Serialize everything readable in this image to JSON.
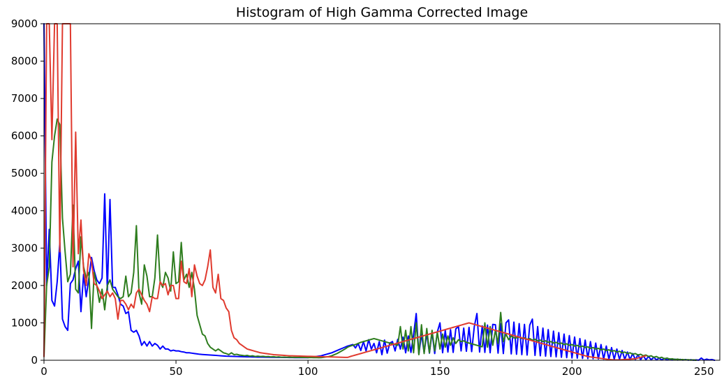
{
  "chart_data": {
    "type": "line",
    "title": "Histogram of High Gamma Corrected Image",
    "xlabel": "",
    "ylabel": "",
    "xlim": [
      0,
      256
    ],
    "ylim": [
      0,
      9000
    ],
    "xticks": [
      0,
      50,
      100,
      150,
      200,
      250
    ],
    "yticks": [
      0,
      1000,
      2000,
      3000,
      4000,
      5000,
      6000,
      7000,
      8000,
      9000
    ],
    "grid": false,
    "legend": false,
    "series": [
      {
        "color": "#0000ff",
        "values": [
          9000,
          2000,
          3500,
          1600,
          1450,
          2100,
          3150,
          1100,
          900,
          800,
          2050,
          2150,
          2450,
          2650,
          1300,
          2300,
          1700,
          2200,
          2750,
          2400,
          2150,
          2050,
          2200,
          4450,
          1850,
          4300,
          1950,
          1950,
          1750,
          1500,
          1450,
          1250,
          1300,
          800,
          750,
          800,
          650,
          400,
          500,
          380,
          500,
          380,
          450,
          400,
          300,
          380,
          300,
          300,
          250,
          270,
          250,
          250,
          230,
          220,
          200,
          200,
          190,
          180,
          170,
          160,
          155,
          150,
          145,
          140,
          135,
          130,
          125,
          120,
          115,
          110,
          108,
          105,
          102,
          100,
          98,
          96,
          94,
          92,
          90,
          88,
          86,
          85,
          84,
          83,
          82,
          81,
          80,
          79,
          78,
          77,
          76,
          75,
          74,
          73,
          72,
          71,
          70,
          70,
          70,
          70,
          70,
          80,
          90,
          100,
          110,
          120,
          140,
          160,
          180,
          200,
          230,
          260,
          290,
          320,
          350,
          380,
          400,
          420,
          330,
          450,
          260,
          500,
          250,
          550,
          300,
          450,
          200,
          500,
          150,
          540,
          190,
          460,
          500,
          250,
          560,
          300,
          620,
          200,
          650,
          210,
          680,
          1250,
          160,
          700,
          200,
          720,
          190,
          750,
          180,
          760,
          1000,
          200,
          800,
          220,
          820,
          210,
          840,
          900,
          250,
          860,
          240,
          880,
          230,
          900,
          1250,
          220,
          920,
          210,
          940,
          200,
          960,
          950,
          190,
          980,
          180,
          1000,
          1080,
          170,
          1020,
          160,
          980,
          150,
          960,
          140,
          940,
          1100,
          130,
          900,
          120,
          860,
          110,
          820,
          100,
          780,
          90,
          740,
          80,
          700,
          70,
          660,
          60,
          620,
          55,
          580,
          50,
          540,
          45,
          500,
          40,
          460,
          35,
          420,
          30,
          380,
          28,
          340,
          26,
          300,
          24,
          260,
          22,
          220,
          20,
          180,
          18,
          150,
          16,
          120,
          14,
          100,
          12,
          80,
          10,
          60,
          8,
          50,
          7,
          40,
          6,
          30,
          5,
          25,
          4,
          20,
          3,
          15,
          2,
          10,
          2,
          60,
          5,
          30,
          10,
          20,
          0
        ]
      },
      {
        "color": "#2e7d1e",
        "values": [
          100,
          2000,
          2500,
          5300,
          6000,
          6450,
          6300,
          3800,
          2900,
          2100,
          2300,
          4150,
          1900,
          1800,
          3300,
          2500,
          2200,
          2350,
          850,
          2350,
          2000,
          1550,
          1900,
          1350,
          2000,
          2150,
          1900,
          1800,
          1700,
          1650,
          1700,
          2250,
          1700,
          1800,
          2350,
          3600,
          1800,
          1500,
          2550,
          2250,
          1700,
          1700,
          2200,
          3350,
          2100,
          1950,
          2350,
          2200,
          1850,
          2900,
          2050,
          2100,
          3150,
          2150,
          2300,
          1950,
          2350,
          1900,
          1200,
          950,
          700,
          650,
          450,
          350,
          300,
          250,
          300,
          250,
          200,
          180,
          150,
          200,
          150,
          160,
          140,
          130,
          120,
          130,
          110,
          120,
          100,
          110,
          100,
          105,
          95,
          100,
          90,
          95,
          85,
          90,
          80,
          85,
          80,
          82,
          78,
          80,
          76,
          78,
          74,
          76,
          72,
          74,
          70,
          72,
          68,
          70,
          80,
          90,
          100,
          120,
          150,
          180,
          220,
          260,
          300,
          350,
          380,
          400,
          420,
          450,
          480,
          500,
          520,
          540,
          560,
          580,
          560,
          540,
          520,
          500,
          480,
          460,
          440,
          420,
          400,
          900,
          300,
          800,
          250,
          900,
          200,
          1000,
          150,
          950,
          180,
          850,
          200,
          800,
          250,
          750,
          300,
          700,
          350,
          650,
          400,
          600,
          450,
          550,
          500,
          520,
          480,
          460,
          440,
          420,
          400,
          380,
          360,
          1000,
          350,
          900,
          400,
          800,
          450,
          1280,
          500,
          700,
          550,
          650,
          600,
          600,
          620,
          580,
          600,
          560,
          580,
          540,
          560,
          520,
          540,
          500,
          520,
          480,
          500,
          460,
          480,
          440,
          460,
          420,
          440,
          400,
          420,
          380,
          400,
          360,
          380,
          340,
          360,
          320,
          340,
          300,
          320,
          280,
          300,
          260,
          280,
          240,
          260,
          220,
          240,
          200,
          220,
          180,
          200,
          160,
          180,
          140,
          160,
          120,
          140,
          100,
          120,
          80,
          100,
          60,
          80,
          40,
          60,
          30,
          40,
          20,
          30,
          15,
          20,
          10,
          15,
          5,
          10,
          0
        ]
      },
      {
        "color": "#e03a2e",
        "values": [
          100,
          9000,
          9000,
          5900,
          9000,
          9000,
          2900,
          9000,
          9000,
          9000,
          9000,
          2500,
          6100,
          2850,
          3750,
          2400,
          2000,
          2850,
          2650,
          2050,
          2000,
          1850,
          1650,
          1750,
          1850,
          1700,
          1800,
          1650,
          1100,
          1600,
          1600,
          1500,
          1350,
          1500,
          1400,
          1800,
          1900,
          1750,
          1600,
          1500,
          1300,
          1700,
          1650,
          1650,
          2100,
          2000,
          2050,
          1750,
          2000,
          2000,
          1650,
          1650,
          2650,
          2100,
          2050,
          2450,
          1700,
          2550,
          2250,
          2050,
          2000,
          2150,
          2500,
          2950,
          1950,
          1800,
          2300,
          1650,
          1600,
          1400,
          1300,
          800,
          600,
          550,
          450,
          400,
          350,
          300,
          280,
          260,
          240,
          220,
          200,
          190,
          180,
          170,
          160,
          150,
          145,
          140,
          135,
          130,
          125,
          120,
          118,
          116,
          114,
          112,
          110,
          108,
          106,
          104,
          102,
          100,
          98,
          96,
          94,
          92,
          90,
          88,
          86,
          84,
          82,
          80,
          78,
          76,
          100,
          120,
          140,
          160,
          180,
          200,
          220,
          240,
          260,
          280,
          300,
          320,
          340,
          360,
          380,
          400,
          420,
          440,
          460,
          480,
          500,
          520,
          540,
          560,
          580,
          600,
          620,
          640,
          660,
          680,
          700,
          720,
          740,
          760,
          780,
          800,
          820,
          840,
          860,
          880,
          900,
          920,
          940,
          960,
          980,
          1000,
          980,
          960,
          940,
          920,
          900,
          880,
          860,
          840,
          820,
          800,
          780,
          760,
          740,
          720,
          700,
          680,
          660,
          640,
          620,
          600,
          580,
          560,
          540,
          520,
          500,
          480,
          460,
          440,
          420,
          400,
          380,
          360,
          340,
          320,
          300,
          280,
          260,
          240,
          220,
          200,
          180,
          160,
          140,
          120,
          100,
          90,
          80,
          70,
          60,
          50,
          40,
          30,
          20,
          15,
          10,
          10,
          10,
          15,
          20,
          25,
          30,
          35,
          40,
          60,
          80,
          100,
          120
        ]
      }
    ]
  }
}
